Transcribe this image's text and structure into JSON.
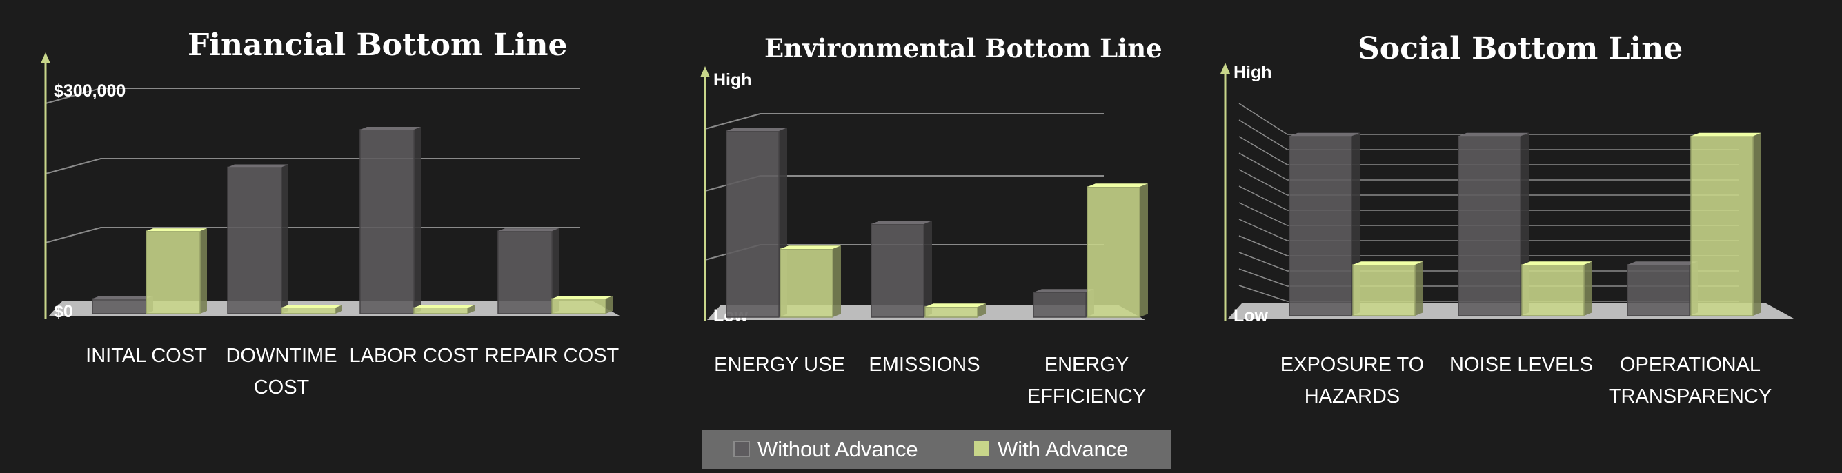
{
  "legend": {
    "items": [
      {
        "label": "Without Advance",
        "color": "#5e5c5f"
      },
      {
        "label": "With Advance",
        "color": "#c8d68a"
      }
    ]
  },
  "colors": {
    "background": "#1c1c1c",
    "without": "#5e5c5f",
    "with": "#c8d68a",
    "axis": "#c8d68a",
    "floor": "#bcbcbc"
  },
  "chart_data": [
    {
      "type": "bar",
      "title": "Financial Bottom Line",
      "ytick_labels": [
        "$300,000",
        "$0"
      ],
      "categories": [
        [
          "INITAL COST"
        ],
        [
          "DOWNTIME",
          "COST"
        ],
        [
          "LABOR COST"
        ],
        [
          "REPAIR COST"
        ]
      ],
      "series": [
        {
          "name": "Without Advance",
          "values": [
            20000,
            195000,
            245000,
            110000
          ]
        },
        {
          "name": "With Advance",
          "values": [
            110000,
            8000,
            8000,
            20000
          ]
        }
      ],
      "ylim": [
        0,
        300000
      ],
      "grid": true,
      "legend_position": "bottom"
    },
    {
      "type": "bar",
      "title": "Environmental Bottom Line",
      "ytick_labels": [
        "High",
        "Low"
      ],
      "categories": [
        [
          "ENERGY USE"
        ],
        [
          "EMISSIONS"
        ],
        [
          "ENERGY",
          "EFFICIENCY"
        ]
      ],
      "series": [
        {
          "name": "Without Advance",
          "values": [
            90,
            45,
            12
          ]
        },
        {
          "name": "With Advance",
          "values": [
            33,
            5,
            63
          ]
        }
      ],
      "ylim": [
        0,
        100
      ],
      "grid": true,
      "legend_position": "bottom"
    },
    {
      "type": "bar",
      "title": "Social Bottom Line",
      "ytick_labels": [
        "High",
        "Low"
      ],
      "categories": [
        [
          "EXPOSURE TO",
          "HAZARDS"
        ],
        [
          "NOISE LEVELS"
        ],
        [
          "OPERATIONAL",
          "TRANSPARENCY"
        ]
      ],
      "series": [
        {
          "name": "Without Advance",
          "values": [
            88,
            88,
            25
          ]
        },
        {
          "name": "With Advance",
          "values": [
            25,
            25,
            88
          ]
        }
      ],
      "ylim": [
        0,
        100
      ],
      "grid": true,
      "legend_position": "bottom"
    }
  ]
}
